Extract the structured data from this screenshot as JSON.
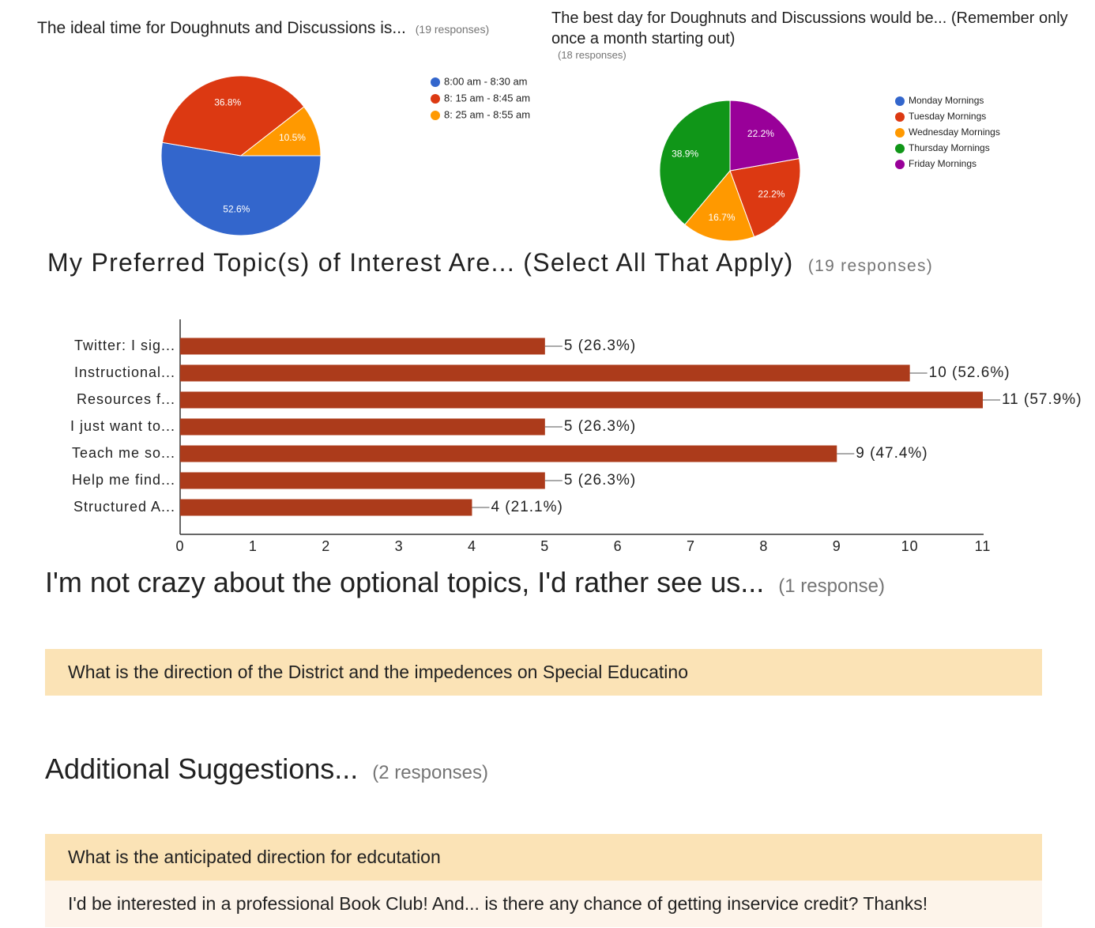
{
  "chart_data": [
    {
      "type": "pie",
      "title": "The ideal time for Doughnuts and Discussions is...",
      "subtitle": "(19 responses)",
      "categories": [
        "8:00 am - 8:30 am",
        "8: 15 am - 8:45 am",
        "8: 25 am - 8:55 am"
      ],
      "values": [
        52.6,
        36.8,
        10.5
      ],
      "value_labels": [
        "52.6%",
        "36.8%",
        "10.5%"
      ],
      "colors": [
        "#3366cc",
        "#dc3912",
        "#ff9900"
      ],
      "legend": "right"
    },
    {
      "type": "pie",
      "title": "The best day for Doughnuts and Discussions would be... (Remember only once a month starting out)",
      "subtitle": "(18 responses)",
      "categories": [
        "Monday Mornings",
        "Tuesday Mornings",
        "Wednesday Mornings",
        "Thursday Mornings",
        "Friday Mornings"
      ],
      "values": [
        0,
        22.2,
        16.7,
        38.9,
        22.2
      ],
      "value_labels": [
        null,
        "22.2%",
        "16.7%",
        "38.9%",
        "22.2%"
      ],
      "colors": [
        "#3366cc",
        "#dc3912",
        "#ff9900",
        "#109618",
        "#990099"
      ],
      "legend": "right"
    },
    {
      "type": "bar",
      "orientation": "horizontal",
      "title": "My Preferred Topic(s) of Interest Are... (Select All That Apply)",
      "subtitle": "(19 responses)",
      "categories": [
        "Twitter: I sig...",
        "Instructional...",
        "Resources f...",
        "I just want to...",
        "Teach me so...",
        "Help me find...",
        "Structured A..."
      ],
      "values": [
        5,
        10,
        11,
        5,
        9,
        5,
        4
      ],
      "value_labels": [
        "5 (26.3%)",
        "10 (52.6%)",
        "11 (57.9%)",
        "5 (26.3%)",
        "9 (47.4%)",
        "5 (26.3%)",
        "4 (21.1%)"
      ],
      "color": "#ac3b1b",
      "xlim": [
        0,
        11
      ],
      "xticks": [
        0,
        1,
        2,
        3,
        4,
        5,
        6,
        7,
        8,
        9,
        10,
        11
      ]
    }
  ],
  "text_sections": [
    {
      "title": "I'm not crazy about the optional topics, I'd rather see us...",
      "subtitle": "(1 response)",
      "responses": [
        "What is the direction of the District and the impedences on Special Educatino"
      ]
    },
    {
      "title": "Additional Suggestions...",
      "subtitle": "(2 responses)",
      "responses": [
        "What is the anticipated direction for edcutation",
        "I'd be interested in a professional Book Club! And... is there any chance of getting inservice credit? Thanks!"
      ]
    }
  ]
}
